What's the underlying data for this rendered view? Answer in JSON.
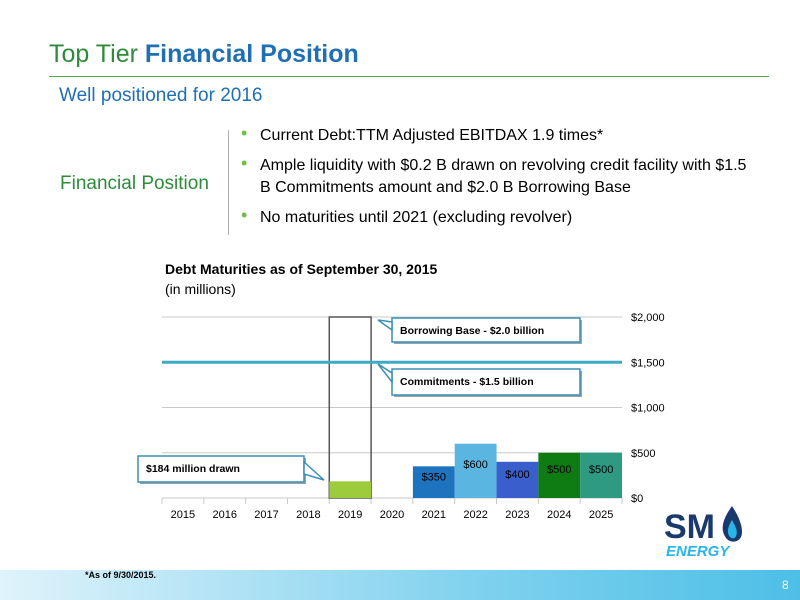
{
  "header": {
    "title_plain": "Top Tier ",
    "title_bold": "Financial Position",
    "subtitle": "Well positioned for 2016"
  },
  "section": {
    "label": "Financial Position",
    "bullets": [
      "Current Debt:TTM Adjusted EBITDAX 1.9 times*",
      "Ample liquidity with $0.2 B drawn on revolving credit facility with $1.5 B Commitments amount and $2.0 B Borrowing Base",
      "No maturities until 2021 (excluding revolver)"
    ]
  },
  "chart_data": {
    "type": "bar",
    "title": "Debt Maturities as of September 30, 2015",
    "subtitle": "(in millions)",
    "categories": [
      "2015",
      "2016",
      "2017",
      "2018",
      "2019",
      "2020",
      "2021",
      "2022",
      "2023",
      "2024",
      "2025"
    ],
    "series": [
      {
        "values": [
          0,
          0,
          0,
          0,
          184,
          0,
          350,
          600,
          400,
          500,
          500
        ],
        "data_labels": [
          "",
          "",
          "",
          "",
          "",
          "",
          "$350",
          "$600",
          "$400",
          "$500",
          "$500"
        ],
        "colors": [
          "",
          "",
          "",
          "",
          "#9ccb3b",
          "",
          "#1e73be",
          "#5bb5e1",
          "#3a5fcd",
          "#0e7c12",
          "#2e9a82"
        ]
      }
    ],
    "revolver_outline": {
      "category": "2019",
      "value": 2000
    },
    "reference_line": {
      "value": 1500,
      "color": "#3fa9c6"
    },
    "y_ticks": [
      "$0",
      "$500",
      "$1,000",
      "$1,500",
      "$2,000"
    ],
    "y_tick_values": [
      0,
      500,
      1000,
      1500,
      2000
    ],
    "ylim": [
      0,
      2000
    ],
    "y_axis_position": "right",
    "grid": true,
    "annotations": [
      "Borrowing Base - $2.0 billion",
      "Commitments - $1.5 billion",
      "$184 million drawn"
    ]
  },
  "footer": {
    "footnote": "*As of 9/30/2015.",
    "page_number": "8"
  },
  "logo": {
    "text_top": "SM",
    "text_bottom": "ENERGY"
  },
  "colors": {
    "green": "#2e8b3a",
    "blue": "#1f6fb4",
    "bullet": "#6ec046"
  }
}
